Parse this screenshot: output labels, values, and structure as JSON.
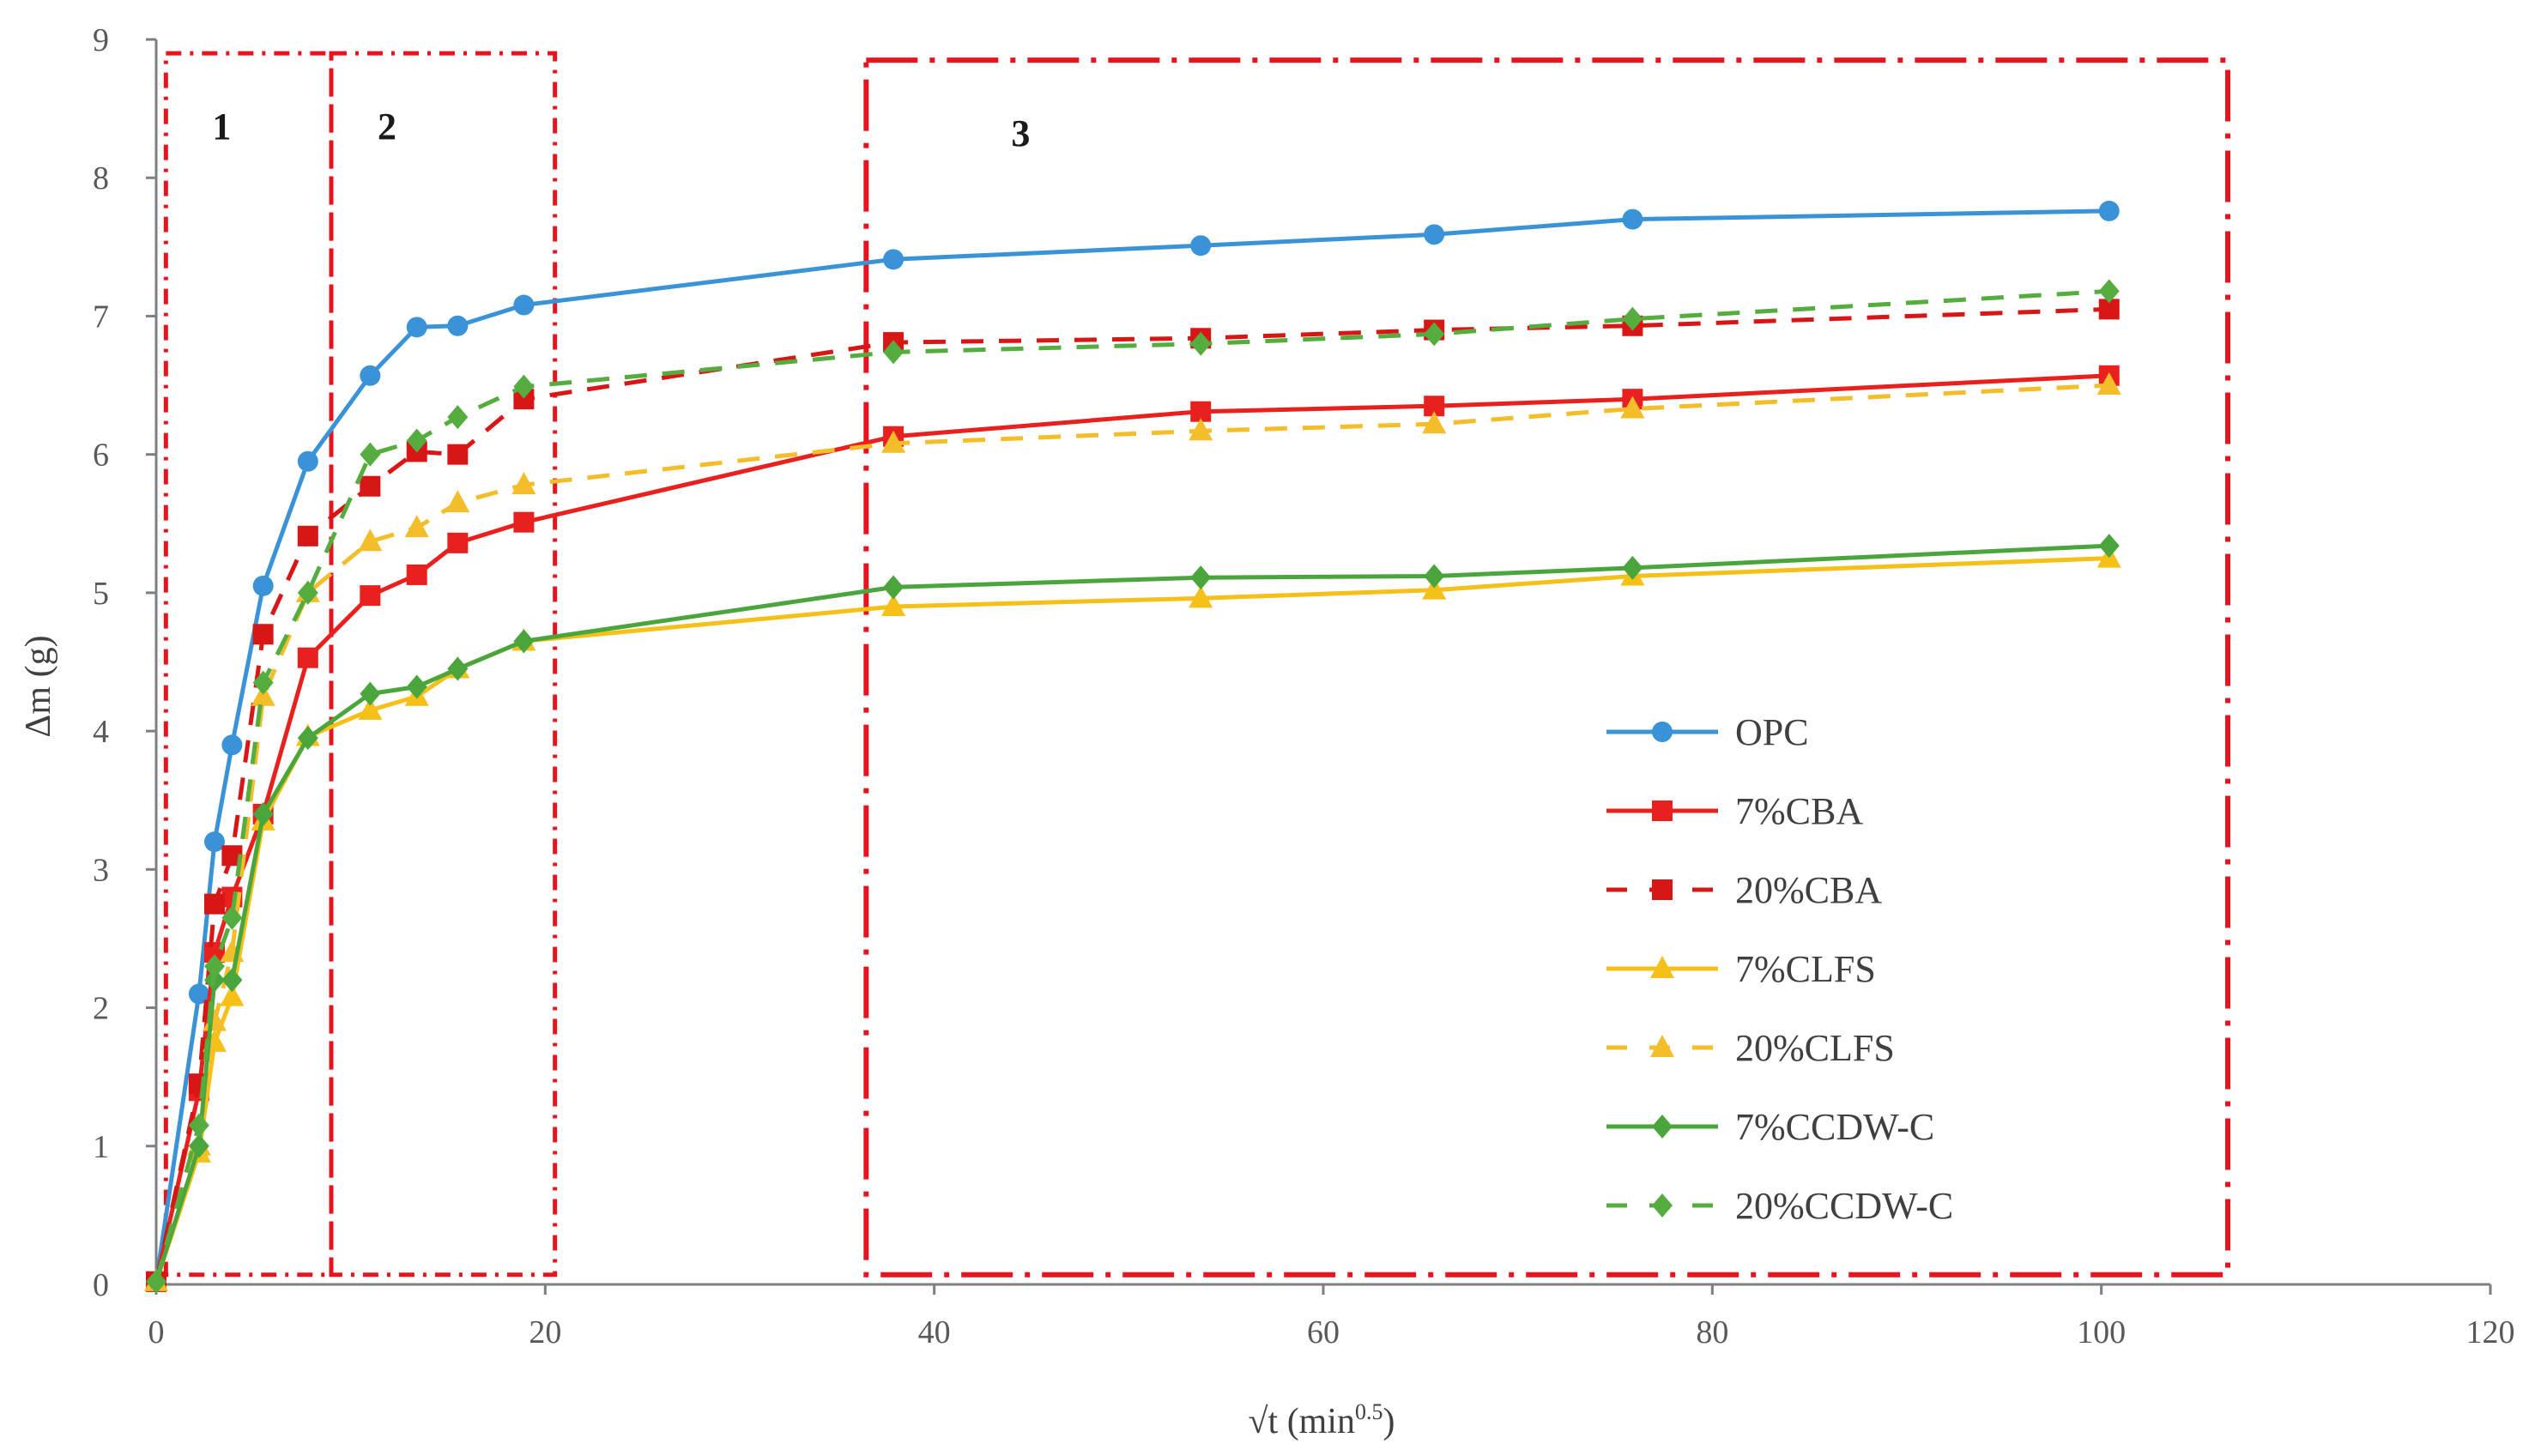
{
  "chart_data": {
    "type": "line",
    "title": "",
    "xlabel": "√t (min",
    "xlabel_sup": "0.5",
    "xlabel_close": ")",
    "ylabel": "Δm (g)",
    "xlim": [
      0,
      120
    ],
    "ylim": [
      0,
      9
    ],
    "x_ticks": [
      0,
      20,
      40,
      60,
      80,
      100,
      120
    ],
    "y_ticks": [
      0,
      1,
      2,
      3,
      4,
      5,
      6,
      7,
      8,
      9
    ],
    "grid": false,
    "legend_position": "right-lower",
    "regions": [
      {
        "label": "1",
        "x_start": 0.5,
        "x_end": 9,
        "y_top": 8.9
      },
      {
        "label": "2",
        "x_start": 9,
        "x_end": 20.5,
        "y_top": 8.9
      },
      {
        "label": "3",
        "x_start": 36.5,
        "x_end": 106.5,
        "y_top": 8.85
      }
    ],
    "series": [
      {
        "name": "OPC",
        "color": "#3a93d6",
        "dash": false,
        "marker": "circle",
        "x": [
          0,
          2.2,
          3,
          3.9,
          5.5,
          7.8,
          11,
          13.4,
          15.5,
          18.9,
          37.9,
          53.7,
          65.7,
          75.9,
          100.4
        ],
        "y": [
          0.02,
          2.1,
          3.2,
          3.9,
          5.05,
          5.95,
          6.57,
          6.92,
          6.93,
          7.08,
          7.41,
          7.51,
          7.59,
          7.7,
          7.76
        ]
      },
      {
        "name": "7%CBA",
        "color": "#e8201e",
        "dash": false,
        "marker": "square",
        "x": [
          0,
          2.2,
          3,
          3.9,
          5.5,
          7.8,
          11,
          13.4,
          15.5,
          18.9,
          37.9,
          53.7,
          65.7,
          75.9,
          100.4
        ],
        "y": [
          0.02,
          1.4,
          2.4,
          2.8,
          3.4,
          4.53,
          4.98,
          5.13,
          5.36,
          5.51,
          6.13,
          6.31,
          6.35,
          6.4,
          6.57
        ]
      },
      {
        "name": "20%CBA",
        "color": "#d81616",
        "dash": true,
        "marker": "square",
        "x": [
          0,
          2.2,
          3,
          3.9,
          5.5,
          7.8,
          11,
          13.4,
          15.5,
          18.9,
          37.9,
          53.7,
          65.7,
          75.9,
          100.4
        ],
        "y": [
          0.02,
          1.45,
          2.75,
          3.1,
          4.7,
          5.41,
          5.77,
          6.02,
          6.0,
          6.4,
          6.81,
          6.84,
          6.9,
          6.93,
          7.05
        ]
      },
      {
        "name": "7%CLFS",
        "color": "#f5c017",
        "dash": false,
        "marker": "triangle",
        "x": [
          0,
          2.2,
          3,
          3.9,
          5.5,
          7.8,
          11,
          13.4,
          15.5,
          18.9,
          37.9,
          53.7,
          65.7,
          75.9,
          100.4
        ],
        "y": [
          0.02,
          0.95,
          1.75,
          2.08,
          3.35,
          3.96,
          4.15,
          4.25,
          4.45,
          4.65,
          4.9,
          4.96,
          5.02,
          5.12,
          5.25
        ]
      },
      {
        "name": "20%CLFS",
        "color": "#f3be2a",
        "dash": true,
        "marker": "triangle",
        "x": [
          0,
          2.2,
          3,
          3.9,
          5.5,
          7.8,
          11,
          13.4,
          15.5,
          18.9,
          37.9,
          53.7,
          65.7,
          75.9,
          100.4
        ],
        "y": [
          0.02,
          1.0,
          1.9,
          2.4,
          4.25,
          5.0,
          5.37,
          5.47,
          5.65,
          5.78,
          6.08,
          6.17,
          6.22,
          6.33,
          6.5
        ]
      },
      {
        "name": "7%CCDW-C",
        "color": "#4aa63c",
        "dash": false,
        "marker": "diamond",
        "x": [
          0,
          2.2,
          3,
          3.9,
          5.5,
          7.8,
          11,
          13.4,
          15.5,
          18.9,
          37.9,
          53.7,
          65.7,
          75.9,
          100.4
        ],
        "y": [
          0.02,
          1.0,
          2.2,
          2.2,
          3.4,
          3.95,
          4.27,
          4.32,
          4.45,
          4.65,
          5.04,
          5.11,
          5.12,
          5.18,
          5.34
        ]
      },
      {
        "name": "20%CCDW-C",
        "color": "#56ad3f",
        "dash": true,
        "marker": "diamond",
        "x": [
          0,
          2.2,
          3,
          3.9,
          5.5,
          7.8,
          11,
          13.4,
          15.5,
          18.9,
          37.9,
          53.7,
          65.7,
          75.9,
          100.4
        ],
        "y": [
          0.02,
          1.15,
          2.3,
          2.65,
          4.35,
          5.0,
          6.0,
          6.1,
          6.27,
          6.49,
          6.74,
          6.8,
          6.87,
          6.98,
          7.18
        ]
      }
    ]
  }
}
